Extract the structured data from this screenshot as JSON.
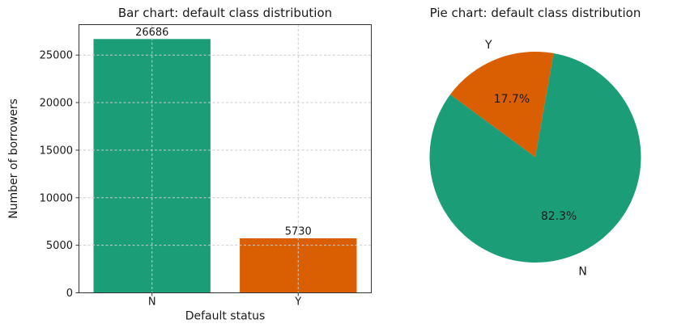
{
  "figure": {
    "background": "#ffffff",
    "grid_color": "#cccccc",
    "spine_color": "#333333",
    "text_color": "#1a1a1a"
  },
  "chart_data": [
    {
      "type": "bar",
      "title": "Bar chart: default class distribution",
      "xlabel": "Default status",
      "ylabel": "Number of borrowers",
      "categories": [
        "N",
        "Y"
      ],
      "values": [
        26686,
        5730
      ],
      "bar_value_labels": [
        "26686",
        "5730"
      ],
      "bar_colors": [
        "#1b9e77",
        "#d95f02"
      ],
      "yticks": [
        0,
        5000,
        10000,
        15000,
        20000,
        25000
      ],
      "ytick_labels": [
        "0",
        "5000",
        "10000",
        "15000",
        "20000",
        "25000"
      ],
      "ylim": [
        0,
        28200
      ],
      "bar_width_fraction": 0.8,
      "grid": "dashed, both axes, drawn over bars",
      "legend": "none"
    },
    {
      "type": "pie",
      "title": "Pie chart: default class distribution",
      "slices": [
        {
          "label": "Y",
          "value": 5730,
          "pct_label": "17.7%",
          "color": "#d95f02"
        },
        {
          "label": "N",
          "value": 26686,
          "pct_label": "82.3%",
          "color": "#1b9e77"
        }
      ],
      "start_angle_deg": 80,
      "counterclock": true,
      "pct_distance": 0.6,
      "label_distance": 1.1
    }
  ]
}
